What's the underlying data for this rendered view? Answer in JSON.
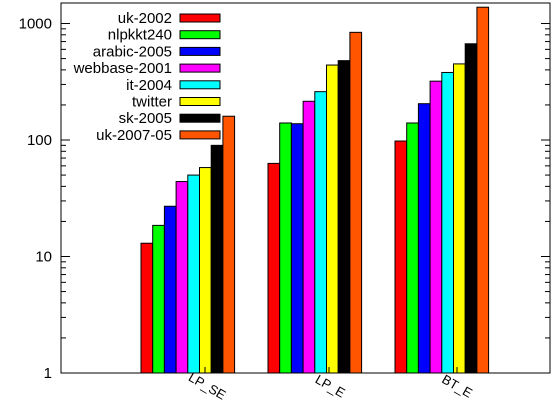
{
  "chart_data": {
    "type": "bar",
    "title": "",
    "xlabel": "",
    "ylabel": "",
    "yscale": "log",
    "ylim": [
      1,
      1500
    ],
    "yticks": [
      {
        "value": 1,
        "label": "1"
      },
      {
        "value": 10,
        "label": "10"
      },
      {
        "value": 100,
        "label": "100"
      },
      {
        "value": 1000,
        "label": "1000"
      }
    ],
    "categories": [
      "LP_SE",
      "LP_E",
      "BT_E"
    ],
    "legend_position": "top-left",
    "grid": false,
    "series": [
      {
        "name": "uk-2002",
        "color": "#ff0000",
        "values": [
          13,
          63,
          98
        ]
      },
      {
        "name": "nlpkkt240",
        "color": "#00ff00",
        "values": [
          18.5,
          140,
          140
        ]
      },
      {
        "name": "arabic-2005",
        "color": "#0000ff",
        "values": [
          27,
          138,
          205
        ]
      },
      {
        "name": "webbase-2001",
        "color": "#ff00ff",
        "values": [
          44,
          215,
          320
        ]
      },
      {
        "name": "it-2004",
        "color": "#00ffff",
        "values": [
          50,
          260,
          380
        ]
      },
      {
        "name": "twitter",
        "color": "#ffff00",
        "values": [
          58,
          440,
          450
        ]
      },
      {
        "name": "sk-2005",
        "color": "#000000",
        "values": [
          90,
          480,
          670
        ]
      },
      {
        "name": "uk-2007-05",
        "color": "#ff5500",
        "values": [
          160,
          840,
          1380
        ]
      }
    ]
  }
}
